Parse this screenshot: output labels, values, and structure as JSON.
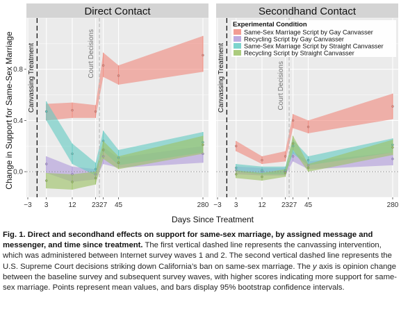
{
  "figure": {
    "ylabel": "Change in Support for Same-Sex Marriage",
    "xlabel": "Days Since Treatment",
    "legend_title": "Experimental Condition",
    "canvassing_label": "Canvassing Treatment",
    "court_label": "Court Decisions"
  },
  "caption": {
    "label": "Fig. 1.",
    "title": "Direct and secondhand effects on support for same-sex marriage, by assigned message and messenger, and time since treatment.",
    "part1": "The first vertical dashed line represents the canvassing intervention, which was administered between Internet survey waves 1 and 2. The second vertical dashed line represents the U.S. Supreme Court decisions striking down California’s ban on same-sex marriage. The",
    "axis_letter": "y",
    "part2": "axis is opinion change between the baseline survey and subsequent survey waves, with higher scores indicating more support for same-sex marriage. Points represent mean values, and bars display 95% bootstrap confidence intervals."
  },
  "chart_data": [
    {
      "type": "area",
      "title": "Direct Contact",
      "xlabel": "Days Since Treatment",
      "ylabel": "Change in Support for Same-Sex Marriage",
      "x_ticks": [
        -3,
        3,
        12,
        23,
        27,
        45,
        280
      ],
      "y_ticks": [
        0.0,
        0.4,
        0.8
      ],
      "ylim": [
        -0.2,
        1.2
      ],
      "grid": true,
      "x": [
        3,
        12,
        23,
        27,
        45,
        280
      ],
      "series": [
        {
          "name": "Same-Sex Marriage Script by Gay Canvasser",
          "color": "#f08b80",
          "values": [
            0.47,
            0.48,
            0.47,
            0.83,
            0.75,
            0.91
          ],
          "lower": [
            0.4,
            0.42,
            0.42,
            0.74,
            0.68,
            0.78
          ],
          "upper": [
            0.53,
            0.54,
            0.52,
            0.93,
            0.83,
            1.06
          ]
        },
        {
          "name": "Recycling Script by Gay Canvasser",
          "color": "#b19cdb",
          "values": [
            0.06,
            -0.02,
            -0.02,
            0.12,
            0.07,
            0.14
          ],
          "lower": [
            -0.01,
            -0.08,
            -0.06,
            0.06,
            0.03,
            0.07
          ],
          "upper": [
            0.12,
            0.04,
            0.02,
            0.19,
            0.11,
            0.2
          ]
        },
        {
          "name": "Same-Sex Marriage Script by Straight Canvasser",
          "color": "#66ccc4",
          "values": [
            0.47,
            0.14,
            0.02,
            0.24,
            0.11,
            0.23
          ],
          "lower": [
            0.4,
            0.06,
            -0.03,
            0.16,
            0.05,
            0.15
          ],
          "upper": [
            0.55,
            0.22,
            0.07,
            0.32,
            0.17,
            0.31
          ]
        },
        {
          "name": "Recycling Script by Straight Canvasser",
          "color": "#9cc266",
          "values": [
            -0.07,
            -0.08,
            -0.05,
            0.17,
            0.07,
            0.21
          ],
          "lower": [
            -0.13,
            -0.14,
            -0.1,
            0.1,
            0.02,
            0.14
          ],
          "upper": [
            -0.01,
            -0.02,
            0.0,
            0.24,
            0.12,
            0.28
          ]
        }
      ]
    },
    {
      "type": "area",
      "title": "Secondhand Contact",
      "xlabel": "Days Since Treatment",
      "ylabel": "Change in Support for Same-Sex Marriage",
      "x_ticks": [
        -3,
        3,
        12,
        23,
        27,
        45,
        280
      ],
      "y_ticks": [
        0.0,
        0.4,
        0.8
      ],
      "ylim": [
        -0.2,
        1.2
      ],
      "grid": true,
      "legend_position": "top-left",
      "x": [
        3,
        12,
        23,
        27,
        45,
        280
      ],
      "series": [
        {
          "name": "Same-Sex Marriage Script by Gay Canvasser",
          "color": "#f08b80",
          "values": [
            0.2,
            0.09,
            0.12,
            0.4,
            0.35,
            0.51
          ],
          "lower": [
            0.16,
            0.06,
            0.08,
            0.34,
            0.3,
            0.41
          ],
          "upper": [
            0.24,
            0.12,
            0.16,
            0.45,
            0.4,
            0.61
          ]
        },
        {
          "name": "Recycling Script by Gay Canvasser",
          "color": "#b19cdb",
          "values": [
            0.01,
            0.0,
            0.0,
            0.12,
            0.05,
            0.1
          ],
          "lower": [
            -0.02,
            -0.03,
            -0.03,
            0.08,
            0.02,
            0.05
          ],
          "upper": [
            0.04,
            0.03,
            0.03,
            0.16,
            0.08,
            0.15
          ]
        },
        {
          "name": "Same-Sex Marriage Script by Straight Canvasser",
          "color": "#66ccc4",
          "values": [
            0.03,
            0.01,
            0.01,
            0.2,
            0.09,
            0.21
          ],
          "lower": [
            0.0,
            -0.02,
            -0.02,
            0.14,
            0.05,
            0.15
          ],
          "upper": [
            0.06,
            0.04,
            0.04,
            0.25,
            0.12,
            0.26
          ]
        },
        {
          "name": "Recycling Script by Straight Canvasser",
          "color": "#9cc266",
          "values": [
            -0.02,
            -0.04,
            -0.01,
            0.22,
            0.03,
            0.19
          ],
          "lower": [
            -0.05,
            -0.07,
            -0.04,
            0.17,
            0.0,
            0.13
          ],
          "upper": [
            0.01,
            -0.01,
            0.02,
            0.28,
            0.06,
            0.25
          ]
        }
      ]
    }
  ]
}
